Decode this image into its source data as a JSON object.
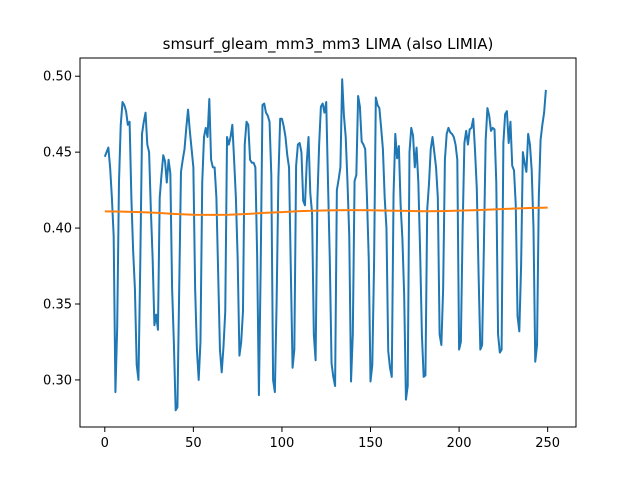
{
  "chart_data": {
    "type": "line",
    "title": "smsurf_gleam_mm3_mm3 LIMA (also LIMIA)",
    "xlabel": "",
    "ylabel": "",
    "xlim": [
      -14,
      266
    ],
    "ylim": [
      0.269,
      0.512
    ],
    "xticks": [
      0,
      50,
      100,
      150,
      200,
      250
    ],
    "xtick_labels": [
      "0",
      "50",
      "100",
      "150",
      "200",
      "250"
    ],
    "yticks": [
      0.3,
      0.35,
      0.4,
      0.45,
      0.5
    ],
    "ytick_labels": [
      "0.30",
      "0.35",
      "0.40",
      "0.45",
      "0.50"
    ],
    "grid": false,
    "series": [
      {
        "color": "#1f77b4",
        "points": [
          [
            0,
            0.447
          ],
          [
            1,
            0.45
          ],
          [
            2,
            0.453
          ],
          [
            3,
            0.44
          ],
          [
            4,
            0.42
          ],
          [
            5,
            0.395
          ],
          [
            6,
            0.292
          ],
          [
            7,
            0.335
          ],
          [
            8,
            0.43
          ],
          [
            9,
            0.468
          ],
          [
            10,
            0.483
          ],
          [
            11,
            0.481
          ],
          [
            12,
            0.477
          ],
          [
            13,
            0.468
          ],
          [
            14,
            0.47
          ],
          [
            15,
            0.42
          ],
          [
            16,
            0.385
          ],
          [
            17,
            0.36
          ],
          [
            18,
            0.31
          ],
          [
            19,
            0.3
          ],
          [
            20,
            0.375
          ],
          [
            21,
            0.462
          ],
          [
            22,
            0.47
          ],
          [
            23,
            0.476
          ],
          [
            24,
            0.455
          ],
          [
            25,
            0.45
          ],
          [
            26,
            0.412
          ],
          [
            27,
            0.38
          ],
          [
            28,
            0.336
          ],
          [
            29,
            0.343
          ],
          [
            30,
            0.333
          ],
          [
            31,
            0.42
          ],
          [
            32,
            0.435
          ],
          [
            33,
            0.448
          ],
          [
            34,
            0.444
          ],
          [
            35,
            0.43
          ],
          [
            36,
            0.445
          ],
          [
            37,
            0.436
          ],
          [
            38,
            0.36
          ],
          [
            39,
            0.324
          ],
          [
            40,
            0.28
          ],
          [
            41,
            0.282
          ],
          [
            42,
            0.36
          ],
          [
            43,
            0.437
          ],
          [
            44,
            0.445
          ],
          [
            45,
            0.452
          ],
          [
            46,
            0.466
          ],
          [
            47,
            0.478
          ],
          [
            48,
            0.464
          ],
          [
            49,
            0.452
          ],
          [
            50,
            0.44
          ],
          [
            51,
            0.36
          ],
          [
            52,
            0.32
          ],
          [
            53,
            0.3
          ],
          [
            54,
            0.325
          ],
          [
            55,
            0.43
          ],
          [
            56,
            0.46
          ],
          [
            57,
            0.466
          ],
          [
            58,
            0.46
          ],
          [
            59,
            0.485
          ],
          [
            60,
            0.445
          ],
          [
            61,
            0.44
          ],
          [
            62,
            0.44
          ],
          [
            63,
            0.42
          ],
          [
            64,
            0.37
          ],
          [
            65,
            0.32
          ],
          [
            66,
            0.305
          ],
          [
            67,
            0.322
          ],
          [
            68,
            0.345
          ],
          [
            69,
            0.46
          ],
          [
            70,
            0.455
          ],
          [
            71,
            0.46
          ],
          [
            72,
            0.468
          ],
          [
            73,
            0.445
          ],
          [
            74,
            0.42
          ],
          [
            75,
            0.38
          ],
          [
            76,
            0.316
          ],
          [
            77,
            0.325
          ],
          [
            78,
            0.345
          ],
          [
            79,
            0.455
          ],
          [
            80,
            0.47
          ],
          [
            81,
            0.468
          ],
          [
            82,
            0.445
          ],
          [
            83,
            0.443
          ],
          [
            84,
            0.443
          ],
          [
            85,
            0.44
          ],
          [
            86,
            0.382
          ],
          [
            87,
            0.29
          ],
          [
            88,
            0.375
          ],
          [
            89,
            0.481
          ],
          [
            90,
            0.482
          ],
          [
            91,
            0.476
          ],
          [
            92,
            0.474
          ],
          [
            93,
            0.47
          ],
          [
            94,
            0.435
          ],
          [
            95,
            0.3
          ],
          [
            96,
            0.292
          ],
          [
            97,
            0.352
          ],
          [
            98,
            0.433
          ],
          [
            99,
            0.472
          ],
          [
            100,
            0.472
          ],
          [
            101,
            0.467
          ],
          [
            102,
            0.46
          ],
          [
            103,
            0.448
          ],
          [
            104,
            0.44
          ],
          [
            105,
            0.373
          ],
          [
            106,
            0.308
          ],
          [
            107,
            0.32
          ],
          [
            108,
            0.441
          ],
          [
            109,
            0.455
          ],
          [
            110,
            0.456
          ],
          [
            111,
            0.45
          ],
          [
            112,
            0.418
          ],
          [
            113,
            0.415
          ],
          [
            114,
            0.443
          ],
          [
            115,
            0.46
          ],
          [
            116,
            0.423
          ],
          [
            117,
            0.41
          ],
          [
            118,
            0.33
          ],
          [
            119,
            0.313
          ],
          [
            120,
            0.418
          ],
          [
            121,
            0.455
          ],
          [
            122,
            0.48
          ],
          [
            123,
            0.482
          ],
          [
            124,
            0.476
          ],
          [
            125,
            0.483
          ],
          [
            126,
            0.43
          ],
          [
            127,
            0.38
          ],
          [
            128,
            0.311
          ],
          [
            129,
            0.302
          ],
          [
            130,
            0.296
          ],
          [
            131,
            0.425
          ],
          [
            132,
            0.432
          ],
          [
            133,
            0.44
          ],
          [
            134,
            0.498
          ],
          [
            135,
            0.474
          ],
          [
            136,
            0.46
          ],
          [
            137,
            0.43
          ],
          [
            138,
            0.395
          ],
          [
            139,
            0.299
          ],
          [
            140,
            0.33
          ],
          [
            141,
            0.431
          ],
          [
            142,
            0.435
          ],
          [
            143,
            0.487
          ],
          [
            144,
            0.48
          ],
          [
            145,
            0.457
          ],
          [
            146,
            0.455
          ],
          [
            147,
            0.452
          ],
          [
            148,
            0.42
          ],
          [
            149,
            0.38
          ],
          [
            150,
            0.299
          ],
          [
            151,
            0.31
          ],
          [
            152,
            0.376
          ],
          [
            153,
            0.486
          ],
          [
            154,
            0.481
          ],
          [
            155,
            0.479
          ],
          [
            156,
            0.466
          ],
          [
            157,
            0.452
          ],
          [
            158,
            0.42
          ],
          [
            159,
            0.4
          ],
          [
            160,
            0.319
          ],
          [
            161,
            0.308
          ],
          [
            162,
            0.302
          ],
          [
            163,
            0.422
          ],
          [
            164,
            0.462
          ],
          [
            165,
            0.446
          ],
          [
            166,
            0.454
          ],
          [
            167,
            0.415
          ],
          [
            168,
            0.393
          ],
          [
            169,
            0.356
          ],
          [
            170,
            0.287
          ],
          [
            171,
            0.296
          ],
          [
            172,
            0.45
          ],
          [
            173,
            0.466
          ],
          [
            174,
            0.461
          ],
          [
            175,
            0.44
          ],
          [
            176,
            0.453
          ],
          [
            177,
            0.43
          ],
          [
            178,
            0.385
          ],
          [
            179,
            0.33
          ],
          [
            180,
            0.302
          ],
          [
            181,
            0.303
          ],
          [
            182,
            0.412
          ],
          [
            183,
            0.429
          ],
          [
            184,
            0.452
          ],
          [
            185,
            0.46
          ],
          [
            186,
            0.45
          ],
          [
            187,
            0.44
          ],
          [
            188,
            0.42
          ],
          [
            189,
            0.33
          ],
          [
            190,
            0.323
          ],
          [
            191,
            0.36
          ],
          [
            192,
            0.445
          ],
          [
            193,
            0.462
          ],
          [
            194,
            0.466
          ],
          [
            195,
            0.463
          ],
          [
            196,
            0.462
          ],
          [
            197,
            0.46
          ],
          [
            198,
            0.455
          ],
          [
            199,
            0.445
          ],
          [
            200,
            0.32
          ],
          [
            201,
            0.325
          ],
          [
            202,
            0.4
          ],
          [
            203,
            0.456
          ],
          [
            204,
            0.464
          ],
          [
            205,
            0.455
          ],
          [
            206,
            0.465
          ],
          [
            207,
            0.466
          ],
          [
            208,
            0.472
          ],
          [
            209,
            0.451
          ],
          [
            210,
            0.426
          ],
          [
            211,
            0.37
          ],
          [
            212,
            0.32
          ],
          [
            213,
            0.323
          ],
          [
            214,
            0.388
          ],
          [
            215,
            0.458
          ],
          [
            216,
            0.479
          ],
          [
            217,
            0.474
          ],
          [
            218,
            0.464
          ],
          [
            219,
            0.466
          ],
          [
            220,
            0.465
          ],
          [
            221,
            0.43
          ],
          [
            222,
            0.33
          ],
          [
            223,
            0.318
          ],
          [
            224,
            0.32
          ],
          [
            225,
            0.456
          ],
          [
            226,
            0.475
          ],
          [
            227,
            0.477
          ],
          [
            228,
            0.456
          ],
          [
            229,
            0.47
          ],
          [
            230,
            0.441
          ],
          [
            231,
            0.438
          ],
          [
            232,
            0.415
          ],
          [
            233,
            0.342
          ],
          [
            234,
            0.332
          ],
          [
            235,
            0.375
          ],
          [
            236,
            0.45
          ],
          [
            237,
            0.443
          ],
          [
            238,
            0.437
          ],
          [
            239,
            0.462
          ],
          [
            240,
            0.455
          ],
          [
            241,
            0.438
          ],
          [
            242,
            0.4
          ],
          [
            243,
            0.312
          ],
          [
            244,
            0.323
          ],
          [
            245,
            0.42
          ],
          [
            246,
            0.458
          ],
          [
            247,
            0.468
          ],
          [
            248,
            0.476
          ],
          [
            249,
            0.491
          ]
        ]
      },
      {
        "color": "#ff7f0e",
        "points": [
          [
            0,
            0.411
          ],
          [
            10,
            0.4108
          ],
          [
            20,
            0.4105
          ],
          [
            30,
            0.41
          ],
          [
            40,
            0.4093
          ],
          [
            50,
            0.4088
          ],
          [
            60,
            0.4087
          ],
          [
            70,
            0.4088
          ],
          [
            80,
            0.4093
          ],
          [
            90,
            0.41
          ],
          [
            100,
            0.4105
          ],
          [
            110,
            0.4112
          ],
          [
            120,
            0.4115
          ],
          [
            130,
            0.4117
          ],
          [
            140,
            0.4118
          ],
          [
            150,
            0.4117
          ],
          [
            160,
            0.4115
          ],
          [
            170,
            0.4113
          ],
          [
            180,
            0.4111
          ],
          [
            190,
            0.4112
          ],
          [
            200,
            0.4115
          ],
          [
            210,
            0.4118
          ],
          [
            220,
            0.4123
          ],
          [
            230,
            0.4128
          ],
          [
            240,
            0.4132
          ],
          [
            250,
            0.4135
          ]
        ]
      }
    ]
  }
}
